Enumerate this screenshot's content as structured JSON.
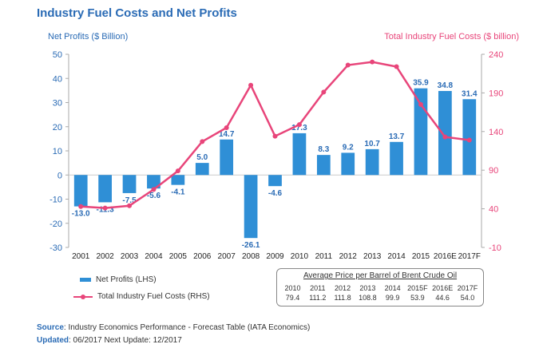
{
  "title": "Industry Fuel Costs and Net Profits",
  "left_axis_title": "Net Profits ($ Billion)",
  "right_axis_title": "Total Industry Fuel Costs ($ billion)",
  "colors": {
    "bar": "#2f8fd6",
    "line": "#e8457a",
    "title": "#2a6bb5"
  },
  "chart_data": {
    "type": "bar",
    "categories": [
      "2001",
      "2002",
      "2003",
      "2004",
      "2005",
      "2006",
      "2007",
      "2008",
      "2009",
      "2010",
      "2011",
      "2012",
      "2013",
      "2014",
      "2015",
      "2016E",
      "2017F"
    ],
    "series": [
      {
        "name": "Net Profits (LHS)",
        "type": "bar",
        "axis": "left",
        "values": [
          -13.0,
          -11.3,
          -7.5,
          -5.6,
          -4.1,
          5.0,
          14.7,
          -26.1,
          -4.6,
          17.3,
          8.3,
          9.2,
          10.7,
          13.7,
          35.9,
          34.8,
          31.4
        ],
        "labels": [
          "-13.0",
          "-11.3",
          "-7.5",
          "-5.6",
          "-4.1",
          "5.0",
          "14.7",
          "-26.1",
          "-4.6",
          "17.3",
          "8.3",
          "9.2",
          "10.7",
          "13.7",
          "35.9",
          "34.8",
          "31.4"
        ]
      },
      {
        "name": "Total Industry Fuel Costs (RHS)",
        "type": "line",
        "axis": "right",
        "values": [
          43,
          41,
          44,
          65,
          89,
          127,
          145,
          200,
          134,
          149,
          191,
          226,
          230,
          224,
          175,
          133,
          129
        ]
      }
    ],
    "left_ylim": [
      -30,
      50
    ],
    "left_ticks": [
      "50",
      "40",
      "30",
      "20",
      "10",
      "0",
      "-10",
      "-20",
      "-30"
    ],
    "right_ylim": [
      -10,
      240
    ],
    "right_ticks": [
      "240",
      "190",
      "140",
      "90",
      "40",
      "-10"
    ],
    "grid": false
  },
  "legend": {
    "bar_label": "Net Profits (LHS)",
    "line_label": "Total Industry Fuel Costs (RHS)"
  },
  "price_table": {
    "title": "Average Price per Barrel of Brent Crude Oil",
    "years": [
      "2010",
      "2011",
      "2012",
      "2013",
      "2014",
      "2015F",
      "2016E",
      "2017F"
    ],
    "prices": [
      "79.4",
      "111.2",
      "111.8",
      "108.8",
      "99.9",
      "53.9",
      "44.6",
      "54.0"
    ]
  },
  "footer": {
    "source_label": "Source",
    "source_text": ": Industry Economics Performance - Forecast Table (IATA Economics)",
    "updated_label": "Updated",
    "updated_text": ":  06/2017 Next Update:  12/2017"
  }
}
